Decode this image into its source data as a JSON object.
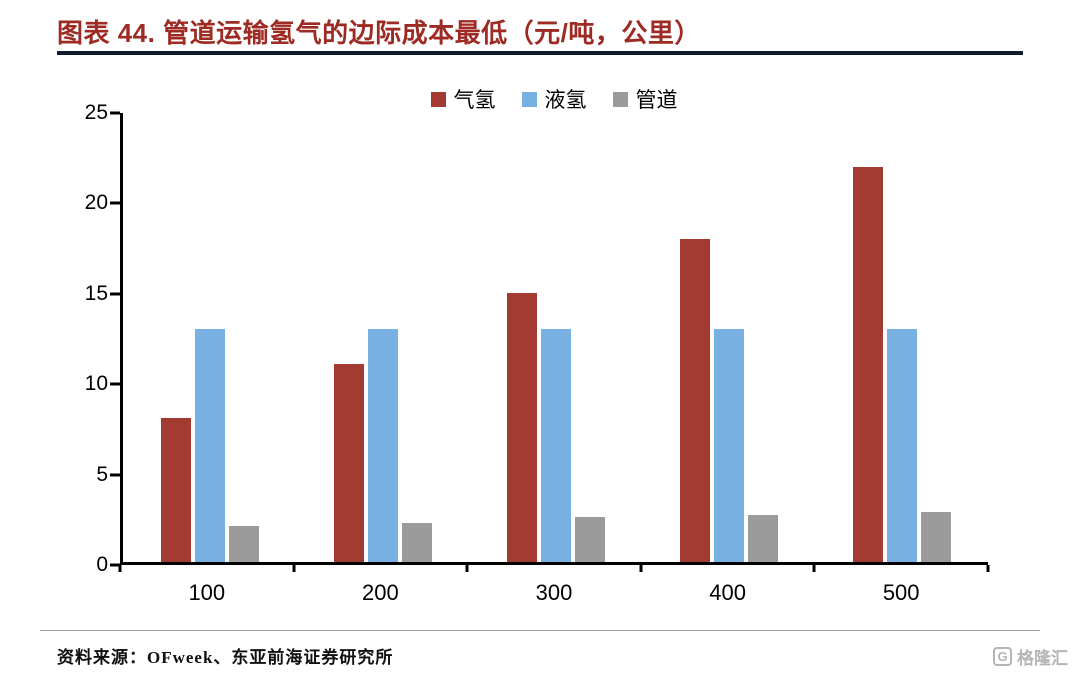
{
  "header": {
    "title": "图表 44. 管道运输氢气的边际成本最低（元/吨，公里）"
  },
  "footer": {
    "source": "资料来源：OFweek、东亚前海证券研究所",
    "watermark": "格隆汇",
    "watermark_icon": "G"
  },
  "colors": {
    "title_red": "#9D2B23",
    "title_underline": "#121C30",
    "axis": "#000000"
  },
  "chart_data": {
    "type": "bar",
    "title": "管道运输氢气的边际成本最低（元/吨，公里）",
    "categories": [
      "100",
      "200",
      "300",
      "400",
      "500"
    ],
    "series": [
      {
        "name": "气氢",
        "color": "#A43B33",
        "values": [
          8,
          11,
          15,
          18,
          22
        ]
      },
      {
        "name": "液氢",
        "color": "#78B1E1",
        "values": [
          13,
          13,
          13,
          13,
          13
        ]
      },
      {
        "name": "管道",
        "color": "#9B9B9B",
        "values": [
          2,
          2.2,
          2.5,
          2.6,
          2.8
        ]
      }
    ],
    "xlabel": "",
    "ylabel": "",
    "ylim": [
      0,
      25
    ],
    "yticks": [
      0,
      5,
      10,
      15,
      20,
      25
    ],
    "grid": false,
    "legend_position": "top-center"
  }
}
